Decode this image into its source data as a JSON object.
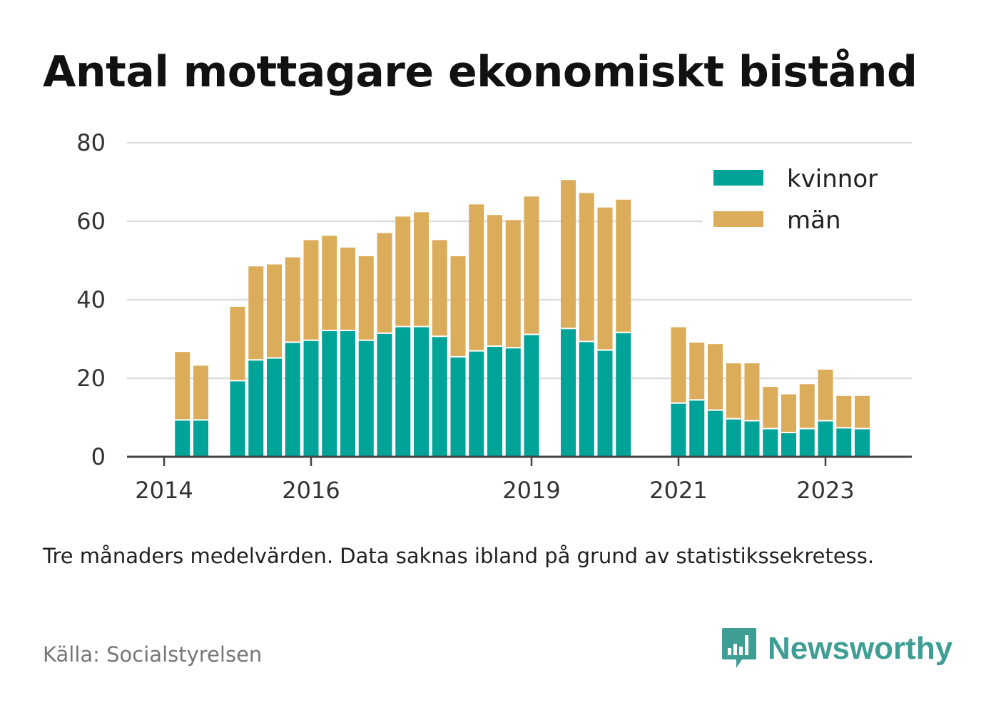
{
  "title": "Antal mottagare ekonomiskt bistånd",
  "subtitle": "Tre månaders medelvärden. Data saknas ibland på grund av statistikssekretess.",
  "source": "Källa: Socialstyrelsen",
  "brand": {
    "name": "Newsworthy",
    "icon": "newsworthy-logo-icon"
  },
  "colors": {
    "kvinnor": "#00a397",
    "man": "#dbad5b",
    "grid": "#dddddd",
    "axis": "#444444",
    "text": "#333333"
  },
  "chart_data": {
    "type": "bar",
    "stacked": true,
    "title": "Antal mottagare ekonomiskt bistånd",
    "xlabel": "",
    "ylabel": "",
    "ylim": [
      0,
      80
    ],
    "yticks": [
      0,
      20,
      40,
      60,
      80
    ],
    "x_ticks": [
      "2014",
      "2016",
      "2019",
      "2021",
      "2023"
    ],
    "x_tick_positions": [
      0,
      8,
      20,
      28,
      36
    ],
    "grid": true,
    "legend_position": "top-right",
    "slots": 40,
    "categories": [
      1,
      2,
      4,
      5,
      6,
      7,
      8,
      9,
      10,
      11,
      12,
      13,
      14,
      15,
      16,
      17,
      18,
      19,
      20,
      22,
      23,
      24,
      25,
      28,
      29,
      30,
      31,
      32,
      33,
      34,
      35,
      36,
      37,
      38
    ],
    "series": [
      {
        "name": "kvinnor",
        "values": [
          9.2,
          9.2,
          19.2,
          24.5,
          25.0,
          29.0,
          29.5,
          32.0,
          32.0,
          29.5,
          31.3,
          33.0,
          33.0,
          30.5,
          25.3,
          26.8,
          28.0,
          27.6,
          31.0,
          32.5,
          29.2,
          27.0,
          31.5,
          13.5,
          14.3,
          11.7,
          9.5,
          9.0,
          7.0,
          6.0,
          7.0,
          9.0,
          7.2,
          7.0
        ]
      },
      {
        "name": "män",
        "values": [
          17.5,
          14.0,
          19.0,
          24.0,
          24.0,
          21.8,
          25.7,
          24.3,
          21.3,
          21.6,
          25.7,
          28.2,
          29.3,
          24.7,
          25.8,
          37.5,
          33.6,
          32.7,
          35.3,
          38.0,
          38.0,
          36.5,
          34.0,
          19.5,
          14.8,
          17.0,
          14.3,
          14.8,
          10.8,
          9.9,
          11.5,
          13.2,
          8.3,
          8.5
        ]
      }
    ]
  }
}
